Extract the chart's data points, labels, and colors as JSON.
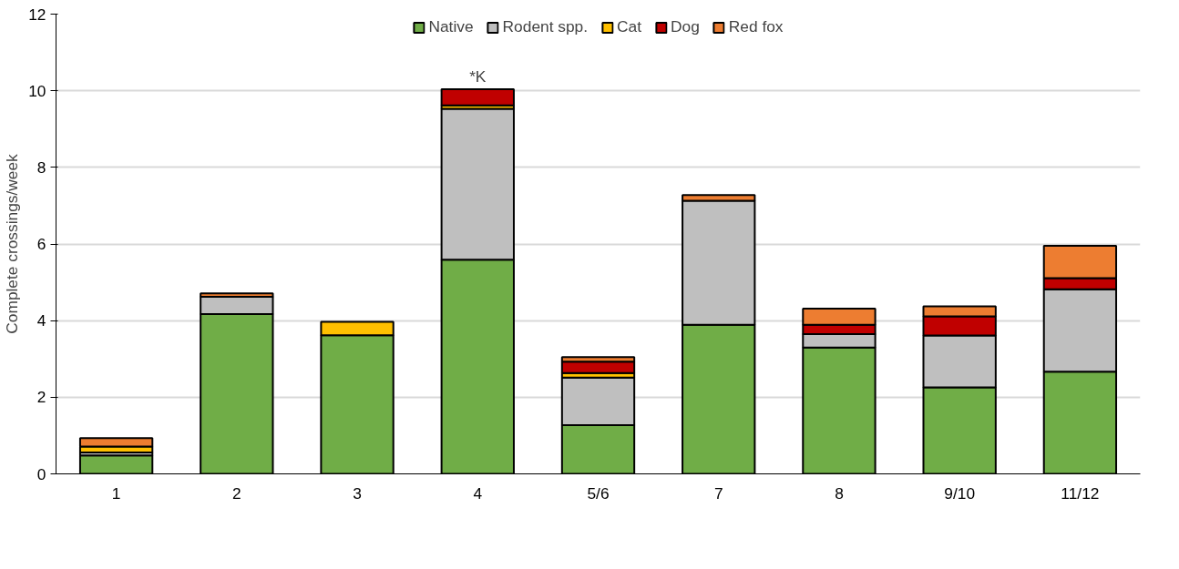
{
  "chart_data": {
    "type": "bar",
    "stacked": true,
    "ylabel": "Complete crossings/week",
    "categories": [
      "1",
      "2",
      "3",
      "4",
      "5/6",
      "7",
      "8",
      "9/10",
      "11/12"
    ],
    "series": [
      {
        "name": "Native",
        "color": "#70ad47",
        "values": [
          0.48,
          4.17,
          3.62,
          5.59,
          1.27,
          3.89,
          3.3,
          2.26,
          2.67
        ]
      },
      {
        "name": "Rodent spp.",
        "color": "#bfbfbf",
        "values": [
          0.08,
          0.45,
          0,
          3.94,
          1.24,
          3.24,
          0.35,
          1.35,
          2.15
        ]
      },
      {
        "name": "Cat",
        "color": "#ffc000",
        "values": [
          0.15,
          0,
          0.35,
          0.09,
          0.12,
          0,
          0,
          0,
          0
        ]
      },
      {
        "name": "Dog",
        "color": "#c00000",
        "values": [
          null,
          0,
          0,
          0.42,
          0.3,
          null,
          0.24,
          0.5,
          0.29
        ]
      },
      {
        "name": "Red fox",
        "color": "#ed7d31",
        "values": [
          0.22,
          0.09,
          0,
          0,
          0.12,
          0.15,
          0.42,
          0.26,
          0.84
        ]
      }
    ],
    "ylim": [
      0,
      12
    ],
    "yticks": [
      0,
      2,
      4,
      6,
      8,
      10,
      12
    ],
    "grid": "y",
    "legend": "top",
    "annotations": [
      {
        "text": "*K",
        "x": "4",
        "y": 10.04
      }
    ]
  }
}
